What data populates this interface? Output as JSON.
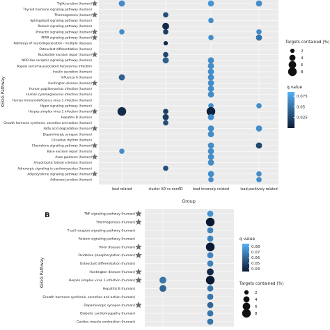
{
  "chart_data": [
    {
      "type": "scatter",
      "panel_label": "",
      "xlabel": "Group",
      "ylabel": "KEGG Pathway",
      "categories": [
        "lead related",
        "cluster AD vs nonAD",
        "lead inversely related",
        "lead positively related"
      ],
      "pathways": [
        "Tight junction (human)",
        "Thyroid hormone signaling pathway (human)",
        "Thermogenesis (human)",
        "Sphingolipid signaling pathway (human)",
        "Relaxin signaling pathway (human)",
        "Prolactin signaling pathway (human)",
        "PPAR signaling pathway (human)",
        "Pathways of neurodegeneration - multiple diseases",
        "Osteoclast differentiation (human)",
        "Nucleotide excision repair (human)",
        "NOD-like receptor signaling pathway (human)",
        "Kaposi sarcoma-associated herpesvirus infection",
        "Insulin secretion (human)",
        "Influenza A (human)",
        "Huntington disease (human)",
        "Human papillomavirus infection (human)",
        "Human cytomegalovirus infection (human)",
        "Human immunodeficiency virus 1 infection (human)",
        "Hippo signaling pathway (human)",
        "Herpes simplex virus 1 infection (human)",
        "Hepatitis B (human)",
        "Growth hormone synthesis, secretion and action (human)",
        "Fatty acid degradation (human)",
        "Dopaminergic synapse (human)",
        "Circadian rhythm (human)",
        "Chemokine signaling pathway (human)",
        "Base excision repair (human)",
        "Axon guidance (human)",
        "Amyotrophic lateral sclerosis (human)",
        "Adrenergic signaling in cardiomyocytes (human)",
        "Adipocytokine signaling pathway (human)",
        "Adherens junction (human)"
      ],
      "starred": [
        0,
        2,
        5,
        6,
        9,
        14,
        19,
        22,
        25,
        27,
        30
      ],
      "points": [
        {
          "pathway": 0,
          "group": 0,
          "targets": 4,
          "q": 0.065
        },
        {
          "pathway": 0,
          "group": 2,
          "targets": 4,
          "q": 0.07
        },
        {
          "pathway": 0,
          "group": 3,
          "targets": 4,
          "q": 0.065
        },
        {
          "pathway": 2,
          "group": 1,
          "targets": 3,
          "q": 0.03
        },
        {
          "pathway": 3,
          "group": 2,
          "targets": 3,
          "q": 0.065
        },
        {
          "pathway": 4,
          "group": 1,
          "targets": 5,
          "q": 0.01
        },
        {
          "pathway": 5,
          "group": 0,
          "targets": 3,
          "q": 0.065
        },
        {
          "pathway": 5,
          "group": 1,
          "targets": 3,
          "q": 0.02
        },
        {
          "pathway": 5,
          "group": 3,
          "targets": 3,
          "q": 0.065
        },
        {
          "pathway": 6,
          "group": 2,
          "targets": 3,
          "q": 0.065
        },
        {
          "pathway": 6,
          "group": 3,
          "targets": 4,
          "q": 0.05
        },
        {
          "pathway": 7,
          "group": 1,
          "targets": 2,
          "q": 0.01
        },
        {
          "pathway": 9,
          "group": 1,
          "targets": 3,
          "q": 0.025
        },
        {
          "pathway": 10,
          "group": 1,
          "targets": 4,
          "q": 0.04
        },
        {
          "pathway": 10,
          "group": 2,
          "targets": 4,
          "q": 0.065
        },
        {
          "pathway": 11,
          "group": 2,
          "targets": 4,
          "q": 0.065
        },
        {
          "pathway": 12,
          "group": 2,
          "targets": 4,
          "q": 0.065
        },
        {
          "pathway": 13,
          "group": 0,
          "targets": 4,
          "q": 0.04
        },
        {
          "pathway": 13,
          "group": 2,
          "targets": 4,
          "q": 0.065
        },
        {
          "pathway": 14,
          "group": 2,
          "targets": 4,
          "q": 0.065
        },
        {
          "pathway": 15,
          "group": 2,
          "targets": 4,
          "q": 0.065
        },
        {
          "pathway": 16,
          "group": 2,
          "targets": 4,
          "q": 0.065
        },
        {
          "pathway": 18,
          "group": 2,
          "targets": 3,
          "q": 0.065
        },
        {
          "pathway": 18,
          "group": 3,
          "targets": 3,
          "q": 0.065
        },
        {
          "pathway": 19,
          "group": 0,
          "targets": 8,
          "q": 0.01
        },
        {
          "pathway": 19,
          "group": 1,
          "targets": 3,
          "q": 0.02
        },
        {
          "pathway": 19,
          "group": 2,
          "targets": 8,
          "q": 0.005
        },
        {
          "pathway": 20,
          "group": 1,
          "targets": 4,
          "q": 0.02
        },
        {
          "pathway": 20,
          "group": 2,
          "targets": 4,
          "q": 0.065
        },
        {
          "pathway": 21,
          "group": 1,
          "targets": 3,
          "q": 0.03
        },
        {
          "pathway": 22,
          "group": 2,
          "targets": 4,
          "q": 0.065
        },
        {
          "pathway": 22,
          "group": 3,
          "targets": 4,
          "q": 0.065
        },
        {
          "pathway": 23,
          "group": 2,
          "targets": 4,
          "q": 0.065
        },
        {
          "pathway": 25,
          "group": 2,
          "targets": 4,
          "q": 0.065
        },
        {
          "pathway": 25,
          "group": 3,
          "targets": 4,
          "q": 0.025
        },
        {
          "pathway": 26,
          "group": 0,
          "targets": 3,
          "q": 0.065
        },
        {
          "pathway": 26,
          "group": 2,
          "targets": 4,
          "q": 0.065
        },
        {
          "pathway": 27,
          "group": 2,
          "targets": 4,
          "q": 0.065
        },
        {
          "pathway": 28,
          "group": 2,
          "targets": 4,
          "q": 0.065
        },
        {
          "pathway": 29,
          "group": 1,
          "targets": 3,
          "q": 0.03
        },
        {
          "pathway": 30,
          "group": 2,
          "targets": 4,
          "q": 0.065
        },
        {
          "pathway": 30,
          "group": 3,
          "targets": 3,
          "q": 0.065
        },
        {
          "pathway": 31,
          "group": 2,
          "targets": 3,
          "q": 0.065
        },
        {
          "pathway": 31,
          "group": 3,
          "targets": 3,
          "q": 0.065
        }
      ],
      "size_legend": {
        "title": "Targets contained (%)",
        "values": [
          2,
          4,
          6,
          8
        ]
      },
      "color_legend": {
        "title": "q.value",
        "ticks": [
          0.025,
          0.05,
          0.075
        ],
        "range": [
          0,
          0.085
        ],
        "low_color": "#0a1a33",
        "high_color": "#56b1f7"
      },
      "grid": true
    },
    {
      "type": "scatter",
      "panel_label": "B",
      "xlabel": "",
      "ylabel": "KEGG Pathway",
      "categories": [
        "",
        ""
      ],
      "pathways": [
        "TNF signaling pathway (human)",
        "Thermogenesis (human)",
        "T cell receptor signaling pathway (human)",
        "Relaxin signaling pathway (human)",
        "Prion disease (human)",
        "Oxidative phosphorylation (human)",
        "Osteoclast differentiation (human)",
        "Huntington disease (human)",
        "Herpes simplex virus 1 infection (human)",
        "Hepatitis B (human)",
        "Growth hormone synthesis, secretion and action (human)",
        "Dopaminergic synapse (human)",
        "Diabetic cardiomyopathy (human)",
        "Cardiac muscle contraction (human)"
      ],
      "starred": [
        0,
        1,
        4,
        5,
        7,
        8,
        11
      ],
      "points": [
        {
          "pathway": 0,
          "group": 1,
          "targets": 4,
          "q": 0.075
        },
        {
          "pathway": 1,
          "group": 1,
          "targets": 8,
          "q": 0.005
        },
        {
          "pathway": 2,
          "group": 1,
          "targets": 4,
          "q": 0.07
        },
        {
          "pathway": 3,
          "group": 1,
          "targets": 4,
          "q": 0.07
        },
        {
          "pathway": 4,
          "group": 1,
          "targets": 8,
          "q": 0.008
        },
        {
          "pathway": 5,
          "group": 1,
          "targets": 4,
          "q": 0.07
        },
        {
          "pathway": 6,
          "group": 1,
          "targets": 4,
          "q": 0.07
        },
        {
          "pathway": 7,
          "group": 1,
          "targets": 5,
          "q": 0.04
        },
        {
          "pathway": 8,
          "group": 0,
          "targets": 5,
          "q": 0.065
        },
        {
          "pathway": 8,
          "group": 1,
          "targets": 8,
          "q": 0.01
        },
        {
          "pathway": 9,
          "group": 0,
          "targets": 5,
          "q": 0.06
        },
        {
          "pathway": 9,
          "group": 1,
          "targets": 4,
          "q": 0.065
        },
        {
          "pathway": 10,
          "group": 1,
          "targets": 4,
          "q": 0.065
        },
        {
          "pathway": 11,
          "group": 1,
          "targets": 4,
          "q": 0.06
        },
        {
          "pathway": 12,
          "group": 1,
          "targets": 4,
          "q": 0.065
        },
        {
          "pathway": 13,
          "group": 1,
          "targets": 4,
          "q": 0.065
        }
      ],
      "color_legend": {
        "title": "q value",
        "ticks": [
          0.04,
          0.05,
          0.06,
          0.07,
          0.08
        ],
        "range": [
          0.035,
          0.085
        ],
        "low_color": "#0a1a33",
        "high_color": "#56b1f7"
      },
      "size_legend": {
        "title": "Targets contained (%)",
        "values": [
          2,
          4,
          6,
          8
        ]
      },
      "grid": true
    }
  ]
}
